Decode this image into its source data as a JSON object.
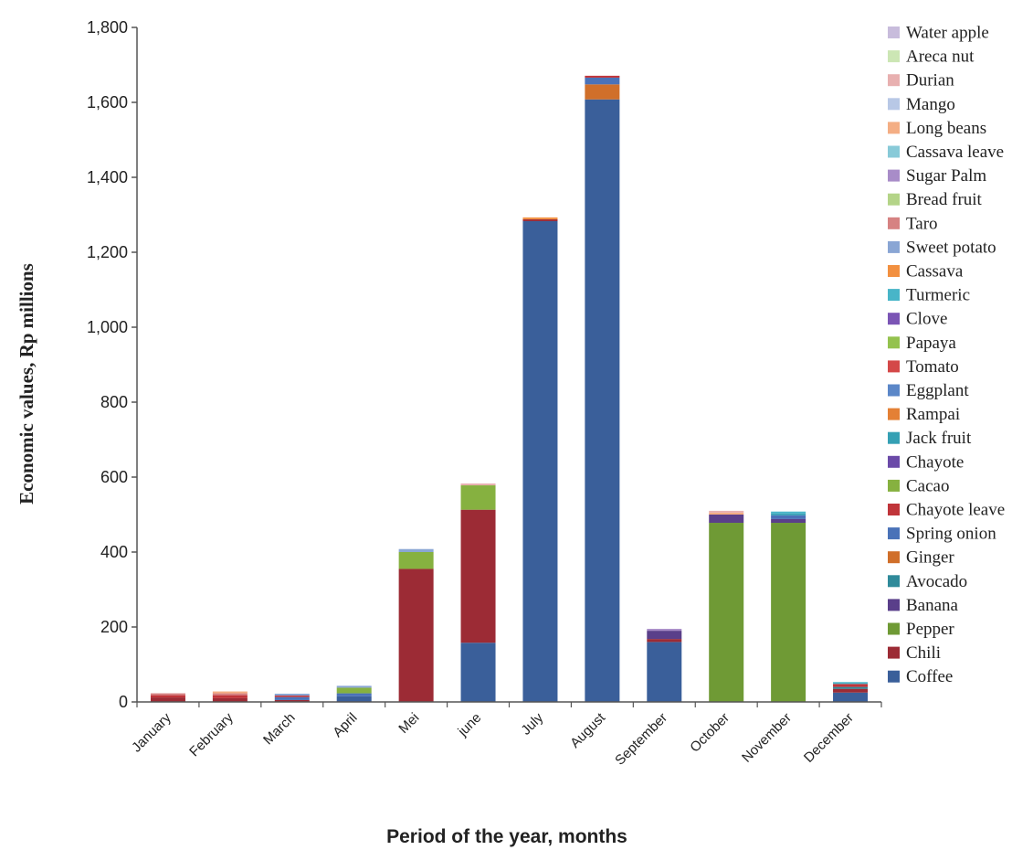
{
  "chart_data": {
    "type": "bar",
    "stacked": true,
    "title": "",
    "xlabel": "Period of the year, months",
    "ylabel": "Economic values, Rp millions",
    "ylim": [
      0,
      1800
    ],
    "yticks": [
      "0",
      "200",
      "400",
      "600",
      "800",
      "1,000",
      "1,200",
      "1,400",
      "1,600",
      "1,800"
    ],
    "ytick_values": [
      0,
      200,
      400,
      600,
      800,
      1000,
      1200,
      1400,
      1600,
      1800
    ],
    "grid": false,
    "legend_position": "right",
    "categories": [
      "January",
      "February",
      "March",
      "April",
      "Mei",
      "june",
      "July",
      "August",
      "September",
      "October",
      "November",
      "December"
    ],
    "series": [
      {
        "name": "Coffee",
        "color": "#3a5f9a",
        "values": [
          0,
          0,
          0,
          15,
          0,
          158,
          1283,
          1608,
          160,
          0,
          0,
          25
        ]
      },
      {
        "name": "Chili",
        "color": "#9c2b35",
        "values": [
          12,
          10,
          5,
          0,
          355,
          355,
          5,
          0,
          8,
          0,
          0,
          10
        ]
      },
      {
        "name": "Pepper",
        "color": "#6f9a35",
        "values": [
          0,
          0,
          0,
          0,
          0,
          0,
          0,
          0,
          0,
          478,
          478,
          0
        ]
      },
      {
        "name": "Banana",
        "color": "#5a3f8a",
        "values": [
          0,
          0,
          0,
          0,
          0,
          0,
          0,
          0,
          22,
          22,
          10,
          0
        ]
      },
      {
        "name": "Avocado",
        "color": "#2f8a9a",
        "values": [
          0,
          0,
          0,
          0,
          0,
          0,
          0,
          0,
          0,
          0,
          0,
          5
        ]
      },
      {
        "name": "Ginger",
        "color": "#d06f2a",
        "values": [
          0,
          0,
          0,
          0,
          0,
          0,
          0,
          40,
          0,
          0,
          0,
          0
        ]
      },
      {
        "name": "Spring onion",
        "color": "#4a72b8",
        "values": [
          0,
          0,
          8,
          8,
          0,
          0,
          0,
          18,
          0,
          0,
          10,
          0
        ]
      },
      {
        "name": "Chayote leave",
        "color": "#c0353a",
        "values": [
          6,
          8,
          4,
          0,
          0,
          0,
          0,
          5,
          0,
          0,
          0,
          8
        ]
      },
      {
        "name": "Cacao",
        "color": "#86b140",
        "values": [
          0,
          0,
          0,
          15,
          45,
          65,
          0,
          0,
          0,
          0,
          0,
          0
        ]
      },
      {
        "name": "Chayote",
        "color": "#6b4aa8",
        "values": [
          0,
          0,
          0,
          0,
          0,
          0,
          0,
          0,
          0,
          0,
          0,
          0
        ]
      },
      {
        "name": "Jack fruit",
        "color": "#35a0b4",
        "values": [
          0,
          0,
          0,
          0,
          0,
          0,
          0,
          0,
          0,
          0,
          5,
          0
        ]
      },
      {
        "name": "Rampai",
        "color": "#e48035",
        "values": [
          0,
          0,
          0,
          0,
          0,
          0,
          0,
          0,
          0,
          0,
          0,
          0
        ]
      },
      {
        "name": "Eggplant",
        "color": "#5b87c8",
        "values": [
          0,
          0,
          0,
          0,
          0,
          0,
          0,
          0,
          0,
          0,
          0,
          0
        ]
      },
      {
        "name": "Tomato",
        "color": "#d44848",
        "values": [
          0,
          0,
          0,
          0,
          0,
          0,
          0,
          0,
          0,
          0,
          0,
          0
        ]
      },
      {
        "name": "Papaya",
        "color": "#94c24e",
        "values": [
          0,
          0,
          0,
          0,
          0,
          0,
          0,
          0,
          0,
          0,
          0,
          0
        ]
      },
      {
        "name": "Clove",
        "color": "#7b55b5",
        "values": [
          0,
          0,
          0,
          0,
          0,
          0,
          0,
          0,
          0,
          0,
          0,
          0
        ]
      },
      {
        "name": "Turmeric",
        "color": "#48b5c8",
        "values": [
          0,
          0,
          0,
          0,
          0,
          0,
          0,
          0,
          0,
          0,
          5,
          5
        ]
      },
      {
        "name": "Cassava",
        "color": "#f29040",
        "values": [
          0,
          0,
          0,
          0,
          0,
          0,
          5,
          0,
          0,
          0,
          0,
          0
        ]
      },
      {
        "name": "Sweet potato",
        "color": "#8aa6d4",
        "values": [
          0,
          0,
          5,
          5,
          8,
          0,
          0,
          0,
          0,
          0,
          0,
          0
        ]
      },
      {
        "name": "Taro",
        "color": "#d68282",
        "values": [
          5,
          5,
          0,
          0,
          0,
          0,
          0,
          0,
          0,
          0,
          0,
          0
        ]
      },
      {
        "name": "Bread fruit",
        "color": "#b4d488",
        "values": [
          0,
          0,
          0,
          0,
          0,
          0,
          0,
          0,
          0,
          0,
          0,
          0
        ]
      },
      {
        "name": "Sugar Palm",
        "color": "#a88cc8",
        "values": [
          0,
          0,
          0,
          0,
          0,
          0,
          0,
          0,
          5,
          0,
          0,
          0
        ]
      },
      {
        "name": "Cassava leave",
        "color": "#88cad8",
        "values": [
          0,
          0,
          0,
          0,
          0,
          0,
          0,
          0,
          0,
          0,
          0,
          0
        ]
      },
      {
        "name": "Long beans",
        "color": "#f4ae84",
        "values": [
          0,
          5,
          0,
          0,
          0,
          0,
          0,
          0,
          0,
          5,
          0,
          0
        ]
      },
      {
        "name": "Mango",
        "color": "#b8c8e6",
        "values": [
          0,
          0,
          0,
          0,
          0,
          0,
          0,
          0,
          0,
          0,
          0,
          0
        ]
      },
      {
        "name": "Durian",
        "color": "#e8b0b0",
        "values": [
          0,
          0,
          0,
          0,
          0,
          5,
          0,
          0,
          0,
          5,
          0,
          0
        ]
      },
      {
        "name": "Areca nut",
        "color": "#cce6b4",
        "values": [
          0,
          0,
          0,
          0,
          0,
          0,
          0,
          0,
          0,
          0,
          0,
          0
        ]
      },
      {
        "name": "Water apple",
        "color": "#c8bcdc",
        "values": [
          0,
          0,
          0,
          0,
          0,
          0,
          0,
          0,
          0,
          0,
          0,
          0
        ]
      }
    ]
  }
}
